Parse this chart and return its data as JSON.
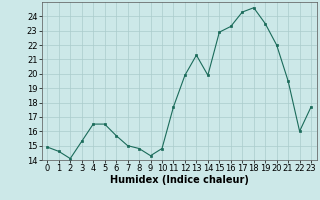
{
  "xlabel": "Humidex (Indice chaleur)",
  "x": [
    0,
    1,
    2,
    3,
    4,
    5,
    6,
    7,
    8,
    9,
    10,
    11,
    12,
    13,
    14,
    15,
    16,
    17,
    18,
    19,
    20,
    21,
    22,
    23
  ],
  "y": [
    14.9,
    14.6,
    14.1,
    15.3,
    16.5,
    16.5,
    15.7,
    15.0,
    14.8,
    14.3,
    14.8,
    17.7,
    19.9,
    21.3,
    19.9,
    22.9,
    23.3,
    24.3,
    24.6,
    23.5,
    22.0,
    19.5,
    16.0,
    17.7
  ],
  "bg_color": "#cce8e8",
  "grid_color": "#aacccc",
  "line_color": "#1a6b5a",
  "marker_color": "#1a6b5a",
  "ylim": [
    14,
    25
  ],
  "xlim": [
    -0.5,
    23.5
  ],
  "yticks": [
    14,
    15,
    16,
    17,
    18,
    19,
    20,
    21,
    22,
    23,
    24
  ],
  "xticks": [
    0,
    1,
    2,
    3,
    4,
    5,
    6,
    7,
    8,
    9,
    10,
    11,
    12,
    13,
    14,
    15,
    16,
    17,
    18,
    19,
    20,
    21,
    22,
    23
  ],
  "xlabel_fontsize": 7,
  "tick_fontsize": 6
}
